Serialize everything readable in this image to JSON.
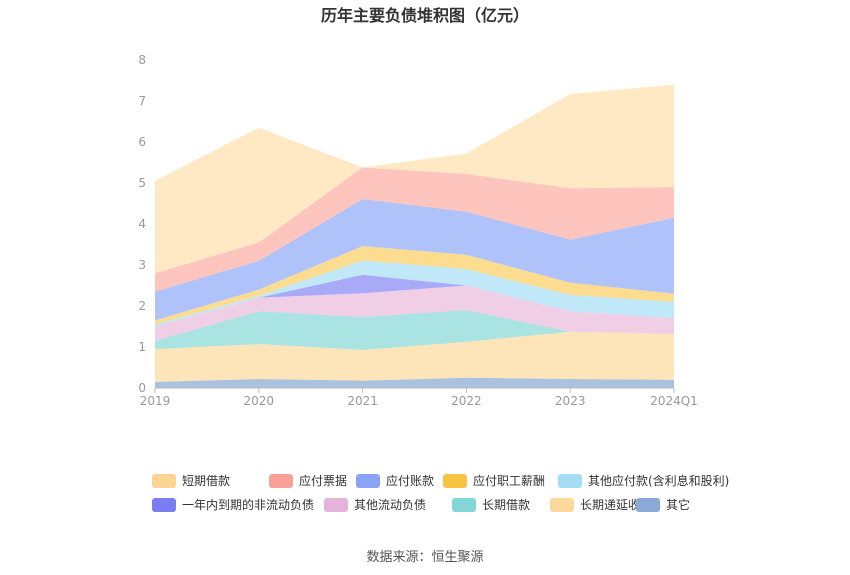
{
  "chart_data": {
    "type": "area",
    "stacked": true,
    "title": "历年主要负债堆积图（亿元）",
    "categories": [
      "2019",
      "2020",
      "2021",
      "2022",
      "2023",
      "2024Q1"
    ],
    "ylim": [
      0,
      8
    ],
    "yticks": [
      "0",
      "1",
      "2",
      "3",
      "4",
      "5",
      "6",
      "7",
      "8"
    ],
    "grid": false,
    "legend_position": "bottom",
    "series": [
      {
        "name": "其它",
        "color": "#8eadd6",
        "values": [
          0.15,
          0.22,
          0.18,
          0.25,
          0.22,
          0.2
        ]
      },
      {
        "name": "长期递延收益",
        "color": "#fcdba2",
        "values": [
          0.8,
          0.85,
          0.75,
          0.88,
          1.15,
          1.12
        ]
      },
      {
        "name": "长期借款",
        "color": "#8cd9d8",
        "values": [
          0.2,
          0.8,
          0.8,
          0.77,
          0.0,
          0.0
        ]
      },
      {
        "name": "其他流动负债",
        "color": "#e9bddd",
        "values": [
          0.35,
          0.33,
          0.58,
          0.6,
          0.5,
          0.38
        ]
      },
      {
        "name": "一年内到期的非流动负债",
        "color": "#8b8ef5",
        "values": [
          0.0,
          0.0,
          0.45,
          0.0,
          0.0,
          0.0
        ]
      },
      {
        "name": "其他应付款(含利息和股利)",
        "color": "#ace0f5",
        "values": [
          0.05,
          0.05,
          0.35,
          0.4,
          0.4,
          0.4
        ]
      },
      {
        "name": "应付职工薪酬",
        "color": "#fbd06a",
        "values": [
          0.1,
          0.15,
          0.35,
          0.35,
          0.3,
          0.2
        ]
      },
      {
        "name": "应付账款",
        "color": "#96aef8",
        "values": [
          0.7,
          0.7,
          1.15,
          1.05,
          1.05,
          1.85
        ]
      },
      {
        "name": "应付票据",
        "color": "#fdb1a8",
        "values": [
          0.45,
          0.45,
          0.77,
          0.92,
          1.25,
          0.75
        ]
      },
      {
        "name": "短期借款",
        "color": "#fde1b0",
        "values": [
          2.25,
          2.8,
          0.0,
          0.5,
          2.3,
          2.5
        ]
      }
    ],
    "legend_order": [
      "短期借款",
      "应付票据",
      "应付账款",
      "应付职工薪酬",
      "其他应付款(含利息和股利)",
      "一年内到期的非流动负债",
      "其他流动负债",
      "长期借款",
      "长期递延收益",
      "其它"
    ],
    "legend_colors": {
      "短期借款": "#fcd493",
      "应付票据": "#f9a196",
      "应付账款": "#8aa3f7",
      "应付职工薪酬": "#f8c242",
      "其他应付款(含利息和股利)": "#a6dcf6",
      "一年内到期的非流动负债": "#7a7ef3",
      "其他流动负债": "#e6b3dc",
      "长期借款": "#82d6d6",
      "长期递延收益": "#fcd99b",
      "其它": "#8aa9d9"
    }
  },
  "source": "数据来源：恒生聚源"
}
